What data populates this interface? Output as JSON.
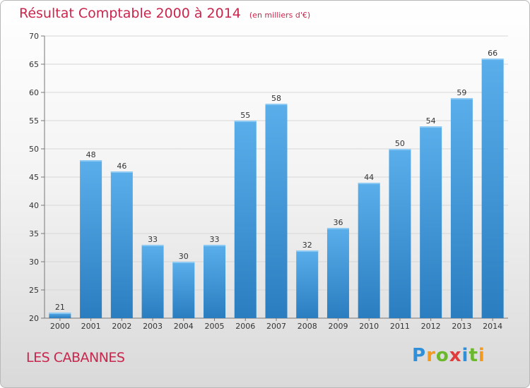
{
  "title": "Résultat Comptable 2000 à 2014",
  "unit": "(en milliers d'€)",
  "commune": "LES CABANNES",
  "logo": {
    "letters": [
      "P",
      "r",
      "o",
      "x",
      "i",
      "t",
      "i"
    ]
  },
  "colors": {
    "title": "#c8264c",
    "bar_top": "#5aaeea",
    "bar_bottom": "#2a7ec0",
    "grid": "#d6d6d6"
  },
  "chart_data": {
    "type": "bar",
    "title": "Résultat Comptable 2000 à 2014",
    "xlabel": "",
    "ylabel": "",
    "categories": [
      "2000",
      "2001",
      "2002",
      "2003",
      "2004",
      "2005",
      "2006",
      "2007",
      "2008",
      "2009",
      "2010",
      "2011",
      "2012",
      "2013",
      "2014"
    ],
    "values": [
      21,
      48,
      46,
      33,
      30,
      33,
      55,
      58,
      32,
      36,
      44,
      50,
      54,
      59,
      66
    ],
    "ylim": [
      20,
      70
    ],
    "yticks": [
      20,
      25,
      30,
      35,
      40,
      45,
      50,
      55,
      60,
      65,
      70
    ],
    "grid": true
  }
}
